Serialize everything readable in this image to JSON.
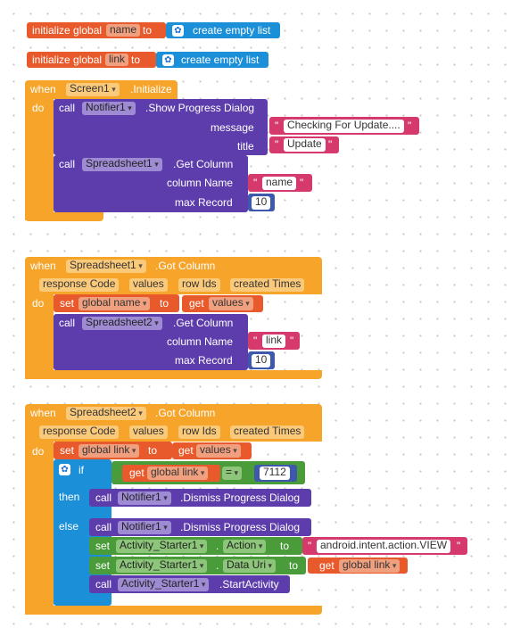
{
  "globals": [
    {
      "keyword": "initialize global",
      "name": "name",
      "to": "to",
      "init": "create empty list"
    },
    {
      "keyword": "initialize global",
      "name": "link",
      "to": "to",
      "init": "create empty list"
    }
  ],
  "kw": {
    "when": "when",
    "do": "do",
    "call": "call",
    "set": "set",
    "to": "to",
    "get": "get",
    "if": "if",
    "then": "then",
    "else": "else",
    "quote": "\""
  },
  "event1": {
    "component": "Screen1",
    "event": ".Initialize",
    "call1": {
      "component": "Notifier1",
      "method": ".Show Progress Dialog",
      "p1": "message",
      "v1": "Checking For Update....",
      "p2": "title",
      "v2": "Update"
    },
    "call2": {
      "component": "Spreadsheet1",
      "method": ".Get Column",
      "p1": "column Name",
      "v1": "name",
      "p2": "max Record",
      "v2": "10"
    }
  },
  "event2": {
    "component": "Spreadsheet1",
    "event": ".Got Column",
    "params": [
      "response Code",
      "values",
      "row Ids",
      "created Times"
    ],
    "set_var": "global name",
    "get_var": "values",
    "call": {
      "component": "Spreadsheet2",
      "method": ".Get Column",
      "p1": "column Name",
      "v1": "link",
      "p2": "max Record",
      "v2": "10"
    }
  },
  "event3": {
    "component": "Spreadsheet2",
    "event": ".Got Column",
    "params": [
      "response Code",
      "values",
      "row Ids",
      "created Times"
    ],
    "set_var": "global link",
    "get_var": "values",
    "if_get": "global link",
    "op": "=",
    "num": "7112",
    "then_call": {
      "component": "Notifier1",
      "method": ".Dismiss Progress Dialog"
    },
    "else_call": {
      "component": "Notifier1",
      "method": ".Dismiss Progress Dialog"
    },
    "set_action": {
      "component": "Activity_Starter1",
      "dot": ".",
      "prop": "Action",
      "value": "android.intent.action.VIEW"
    },
    "set_datauri": {
      "component": "Activity_Starter1",
      "dot": ".",
      "prop": "Data Uri",
      "get": "global link"
    },
    "start": {
      "component": "Activity_Starter1",
      "method": ".StartActivity"
    }
  }
}
